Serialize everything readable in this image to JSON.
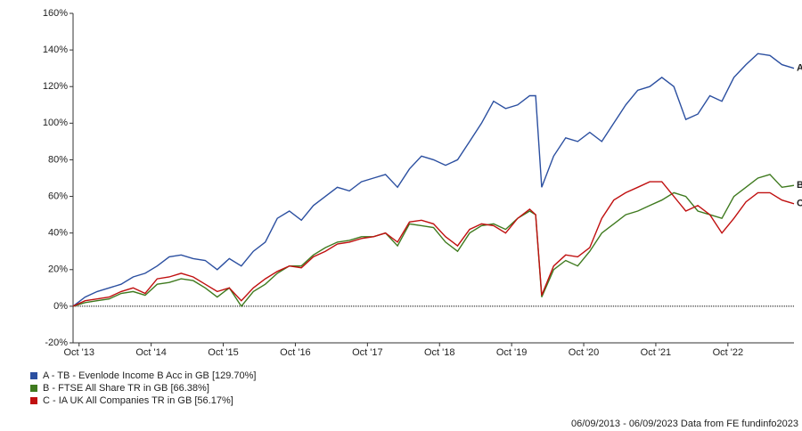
{
  "chart_data": {
    "type": "line",
    "x": [
      "2013-09",
      "2013-11",
      "2014-01",
      "2014-03",
      "2014-05",
      "2014-07",
      "2014-09",
      "2014-11",
      "2015-01",
      "2015-03",
      "2015-05",
      "2015-07",
      "2015-09",
      "2015-11",
      "2016-01",
      "2016-03",
      "2016-05",
      "2016-07",
      "2016-09",
      "2016-11",
      "2017-01",
      "2017-03",
      "2017-05",
      "2017-07",
      "2017-09",
      "2017-11",
      "2018-01",
      "2018-03",
      "2018-05",
      "2018-07",
      "2018-09",
      "2018-11",
      "2019-01",
      "2019-03",
      "2019-05",
      "2019-07",
      "2019-09",
      "2019-11",
      "2020-01",
      "2020-02",
      "2020-03",
      "2020-05",
      "2020-07",
      "2020-09",
      "2020-11",
      "2021-01",
      "2021-03",
      "2021-05",
      "2021-07",
      "2021-09",
      "2021-11",
      "2022-01",
      "2022-03",
      "2022-05",
      "2022-07",
      "2022-09",
      "2022-11",
      "2023-01",
      "2023-03",
      "2023-05",
      "2023-07",
      "2023-09"
    ],
    "xlim": [
      "2013-09",
      "2023-09"
    ],
    "xticks": [
      {
        "value": "2013-10",
        "label": "Oct '13"
      },
      {
        "value": "2014-10",
        "label": "Oct '14"
      },
      {
        "value": "2015-10",
        "label": "Oct '15"
      },
      {
        "value": "2016-10",
        "label": "Oct '16"
      },
      {
        "value": "2017-10",
        "label": "Oct '17"
      },
      {
        "value": "2018-10",
        "label": "Oct '18"
      },
      {
        "value": "2019-10",
        "label": "Oct '19"
      },
      {
        "value": "2020-10",
        "label": "Oct '20"
      },
      {
        "value": "2021-10",
        "label": "Oct '21"
      },
      {
        "value": "2022-10",
        "label": "Oct '22"
      }
    ],
    "ylim": [
      -20,
      160
    ],
    "yticks": [
      {
        "value": -20,
        "label": "-20%"
      },
      {
        "value": 0,
        "label": "0%"
      },
      {
        "value": 20,
        "label": "20%"
      },
      {
        "value": 40,
        "label": "40%"
      },
      {
        "value": 60,
        "label": "60%"
      },
      {
        "value": 80,
        "label": "80%"
      },
      {
        "value": 100,
        "label": "100%"
      },
      {
        "value": 120,
        "label": "120%"
      },
      {
        "value": 140,
        "label": "140%"
      },
      {
        "value": 160,
        "label": "160%"
      }
    ],
    "series": [
      {
        "name": "A - TB - Evenlode Income B Acc in GB [129.70%]",
        "label": "A",
        "color": "#2b4fa0",
        "values": [
          0,
          5,
          8,
          10,
          12,
          16,
          18,
          22,
          27,
          28,
          26,
          25,
          20,
          26,
          22,
          30,
          35,
          48,
          52,
          47,
          55,
          60,
          65,
          63,
          68,
          70,
          72,
          65,
          75,
          82,
          80,
          77,
          80,
          90,
          100,
          112,
          108,
          110,
          115,
          115,
          65,
          82,
          92,
          90,
          95,
          90,
          100,
          110,
          118,
          120,
          125,
          120,
          102,
          105,
          115,
          112,
          125,
          132,
          138,
          137,
          132,
          130
        ]
      },
      {
        "name": "B - FTSE All Share TR in GB [66.38%]",
        "label": "B",
        "color": "#3f7a1f",
        "values": [
          0,
          2,
          3,
          4,
          7,
          8,
          6,
          12,
          13,
          15,
          14,
          10,
          5,
          10,
          0,
          8,
          12,
          18,
          22,
          22,
          28,
          32,
          35,
          36,
          38,
          38,
          40,
          33,
          45,
          44,
          43,
          35,
          30,
          40,
          44,
          45,
          42,
          48,
          52,
          50,
          5,
          20,
          25,
          22,
          30,
          40,
          45,
          50,
          52,
          55,
          58,
          62,
          60,
          52,
          50,
          48,
          60,
          65,
          70,
          72,
          65,
          66
        ]
      },
      {
        "name": "C - IA UK All Companies TR in GB [56.17%]",
        "label": "C",
        "color": "#c01010",
        "values": [
          0,
          3,
          4,
          5,
          8,
          10,
          7,
          15,
          16,
          18,
          16,
          12,
          8,
          10,
          3,
          10,
          15,
          19,
          22,
          21,
          27,
          30,
          34,
          35,
          37,
          38,
          40,
          35,
          46,
          47,
          45,
          38,
          33,
          42,
          45,
          44,
          40,
          48,
          53,
          50,
          6,
          22,
          28,
          27,
          32,
          48,
          58,
          62,
          65,
          68,
          68,
          60,
          52,
          55,
          50,
          40,
          48,
          57,
          62,
          62,
          58,
          56
        ]
      }
    ],
    "footer": "06/09/2013 - 06/09/2023 Data from FE fundinfo2023"
  }
}
